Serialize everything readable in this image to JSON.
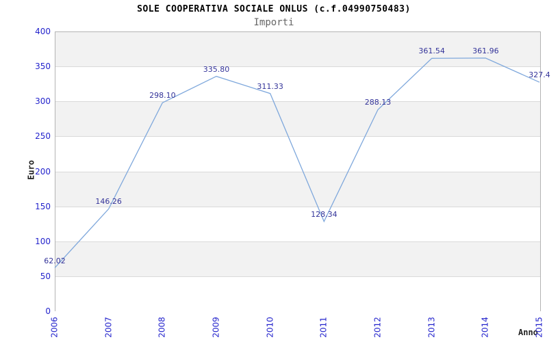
{
  "header": {
    "title": "SOLE COOPERATIVA SOCIALE ONLUS (c.f.04990750483)",
    "subtitle": "Importi"
  },
  "chart_data": {
    "type": "line",
    "title": "SOLE COOPERATIVA SOCIALE ONLUS (c.f.04990750483)",
    "subtitle": "Importi",
    "xlabel": "Anno",
    "ylabel": "Euro",
    "categories": [
      "2006",
      "2007",
      "2008",
      "2009",
      "2010",
      "2011",
      "2012",
      "2013",
      "2014",
      "2015"
    ],
    "series": [
      {
        "name": "Importi",
        "values": [
          62.02,
          146.26,
          298.1,
          335.8,
          311.33,
          128.34,
          288.13,
          361.54,
          361.96,
          327.4
        ]
      }
    ],
    "point_labels": [
      "62.02",
      "146.26",
      "298.10",
      "335.80",
      "311.33",
      "128.34",
      "288.13",
      "361.54",
      "361.96",
      "327.4"
    ],
    "ylim": [
      0,
      400
    ],
    "ytick_step": 50,
    "yticks": [
      400,
      350,
      300,
      250,
      200,
      150,
      100,
      50,
      0
    ],
    "grid": "horizontal-bands",
    "legend_position": "none",
    "colors": {
      "line": "#7fa8dc",
      "tick_label": "#2323cc",
      "point_label": "#333399",
      "band_alt": "#f2f2f2",
      "band_main": "#ffffff",
      "gridline": "#d9d9d9",
      "plot_border": "#b3b3b3",
      "title": "#000000",
      "subtitle": "#666666",
      "axis_title": "#222222"
    }
  }
}
